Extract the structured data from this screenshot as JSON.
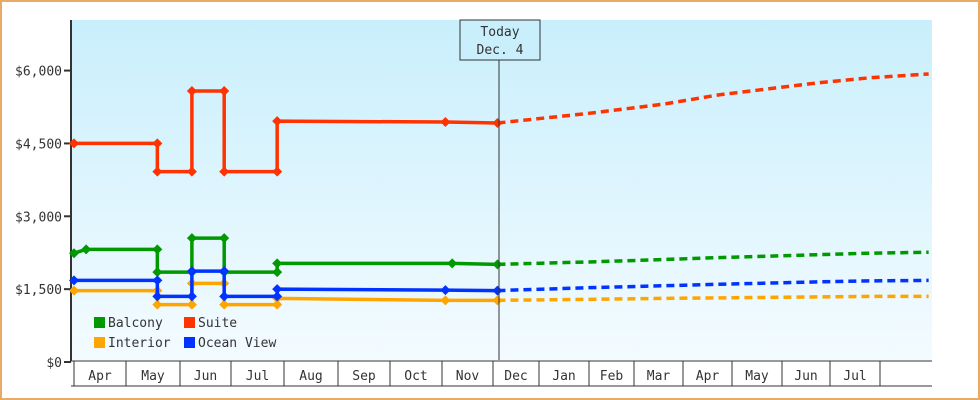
{
  "chart_data": {
    "type": "line",
    "title": "",
    "xlabel": "",
    "ylabel": "",
    "ylim": [
      0,
      7000
    ],
    "y_ticks": [
      {
        "value": 0,
        "label": "$0"
      },
      {
        "value": 1500,
        "label": "$1,500"
      },
      {
        "value": 3000,
        "label": "$3,000"
      },
      {
        "value": 4500,
        "label": "$4,500"
      },
      {
        "value": 6000,
        "label": "$6,000"
      }
    ],
    "x_ticks": [
      "Apr",
      "May",
      "Jun",
      "Jul",
      "Aug",
      "Sep",
      "Oct",
      "Nov",
      "Dec",
      "Jan",
      "Feb",
      "Mar",
      "Apr",
      "May",
      "Jun",
      "Jul",
      ""
    ],
    "grid": false,
    "legend_position": "bottom-left",
    "today_marker": {
      "line1": "Today",
      "line2": "Dec. 4",
      "date": "12-04"
    },
    "series": [
      {
        "name": "Balcony",
        "color": "#009900",
        "history": [
          [
            "04-01",
            2240
          ],
          [
            "04-08",
            2320
          ],
          [
            "05-19",
            2320
          ],
          [
            "05-19",
            1850
          ],
          [
            "06-08",
            1850
          ],
          [
            "06-08",
            2550
          ],
          [
            "06-27",
            2550
          ],
          [
            "06-27",
            1850
          ],
          [
            "07-28",
            1850
          ],
          [
            "07-28",
            2030
          ],
          [
            "11-07",
            2030
          ],
          [
            "12-04",
            2010
          ]
        ],
        "forecast": [
          [
            "12-04",
            2010
          ],
          [
            "02-01",
            2060
          ],
          [
            "03-20",
            2110
          ],
          [
            "04-23",
            2150
          ],
          [
            "06-24",
            2210
          ],
          [
            "07-25",
            2240
          ],
          [
            "08-30",
            2260
          ]
        ]
      },
      {
        "name": "Suite",
        "color": "#ff3300",
        "history": [
          [
            "04-01",
            4500
          ],
          [
            "05-19",
            4500
          ],
          [
            "05-19",
            3920
          ],
          [
            "06-08",
            3920
          ],
          [
            "06-08",
            5580
          ],
          [
            "06-27",
            5580
          ],
          [
            "06-27",
            3920
          ],
          [
            "07-28",
            3920
          ],
          [
            "07-28",
            4960
          ],
          [
            "11-03",
            4940
          ],
          [
            "12-04",
            4920
          ]
        ],
        "forecast": [
          [
            "12-04",
            4920
          ],
          [
            "02-01",
            5120
          ],
          [
            "03-20",
            5310
          ],
          [
            "04-23",
            5500
          ],
          [
            "06-24",
            5750
          ],
          [
            "07-25",
            5850
          ],
          [
            "08-30",
            5930
          ]
        ]
      },
      {
        "name": "Interior",
        "color": "#ffa500",
        "history": [
          [
            "04-01",
            1470
          ],
          [
            "05-19",
            1470
          ],
          [
            "05-19",
            1180
          ],
          [
            "06-08",
            1180
          ],
          [
            "06-08",
            1620
          ],
          [
            "06-27",
            1620
          ],
          [
            "06-27",
            1180
          ],
          [
            "07-28",
            1180
          ],
          [
            "07-28",
            1310
          ],
          [
            "11-03",
            1270
          ],
          [
            "12-04",
            1270
          ]
        ],
        "forecast": [
          [
            "12-04",
            1270
          ],
          [
            "02-01",
            1290
          ],
          [
            "03-20",
            1310
          ],
          [
            "04-23",
            1320
          ],
          [
            "06-24",
            1340
          ],
          [
            "07-25",
            1350
          ],
          [
            "08-30",
            1350
          ]
        ]
      },
      {
        "name": "Ocean View",
        "color": "#0033ff",
        "history": [
          [
            "04-01",
            1680
          ],
          [
            "05-19",
            1680
          ],
          [
            "05-19",
            1350
          ],
          [
            "06-08",
            1350
          ],
          [
            "06-08",
            1870
          ],
          [
            "06-27",
            1870
          ],
          [
            "06-27",
            1350
          ],
          [
            "07-28",
            1350
          ],
          [
            "07-28",
            1500
          ],
          [
            "11-03",
            1480
          ],
          [
            "12-04",
            1470
          ]
        ],
        "forecast": [
          [
            "12-04",
            1470
          ],
          [
            "02-01",
            1530
          ],
          [
            "03-20",
            1570
          ],
          [
            "04-23",
            1600
          ],
          [
            "06-24",
            1650
          ],
          [
            "07-25",
            1670
          ],
          [
            "08-30",
            1680
          ]
        ]
      }
    ]
  }
}
